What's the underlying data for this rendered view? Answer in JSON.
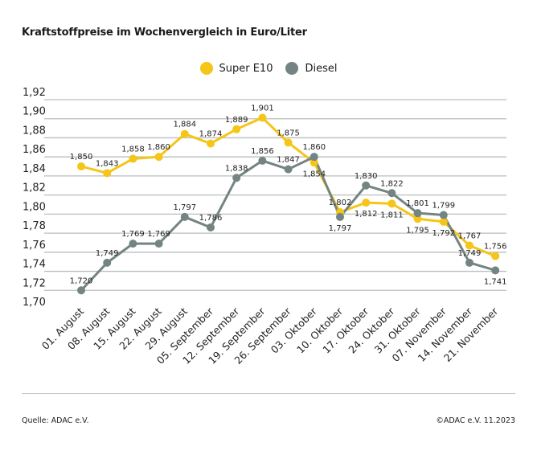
{
  "chart_data": {
    "type": "line",
    "title": "Kraftstoffpreise im Wochenvergleich in Euro/Liter",
    "categories": [
      "01. August",
      "08. August",
      "15. August",
      "22. August",
      "29. August",
      "05. September",
      "12. September",
      "19. September",
      "26. September",
      "03. Oktober",
      "10. Oktober",
      "17. Oktober",
      "24. Oktober",
      "31. Oktober",
      "07. November",
      "14. November",
      "21. November"
    ],
    "series": [
      {
        "name": "Super E10",
        "color": "#f5c518",
        "values": [
          1.85,
          1.843,
          1.858,
          1.86,
          1.884,
          1.874,
          1.889,
          1.901,
          1.875,
          1.854,
          1.802,
          1.812,
          1.811,
          1.795,
          1.792,
          1.767,
          1.756
        ],
        "labels": [
          "1,850",
          "1,843",
          "1,858",
          "1,860",
          "1,884",
          "1,874",
          "1,889",
          "1,901",
          "1,875",
          "1,854",
          "1,802",
          "1,812",
          "1,811",
          "1,795",
          "1,792",
          "1,767",
          "1,756"
        ]
      },
      {
        "name": "Diesel",
        "color": "#748482",
        "values": [
          1.72,
          1.749,
          1.769,
          1.769,
          1.797,
          1.786,
          1.838,
          1.856,
          1.847,
          1.86,
          1.797,
          1.83,
          1.822,
          1.801,
          1.799,
          1.749,
          1.741
        ],
        "labels": [
          "1,720",
          "1,749",
          "1,769",
          "1,769",
          "1,797",
          "1,786",
          "1,838",
          "1,856",
          "1,847",
          "1,860",
          "1,797",
          "1,830",
          "1,822",
          "1,801",
          "1,799",
          "1,749",
          "1,741"
        ]
      }
    ],
    "yticks": [
      "1,92",
      "1,90",
      "1,88",
      "1,86",
      "1,84",
      "1,82",
      "1,80",
      "1,78",
      "1,76",
      "1,74",
      "1,72",
      "1,70"
    ],
    "ylim": [
      1.7,
      1.92
    ],
    "grid": true,
    "legend": "top-center"
  },
  "footer": {
    "source": "Quelle: ADAC e.V.",
    "copyright": "©ADAC e.V. 11.2023"
  }
}
